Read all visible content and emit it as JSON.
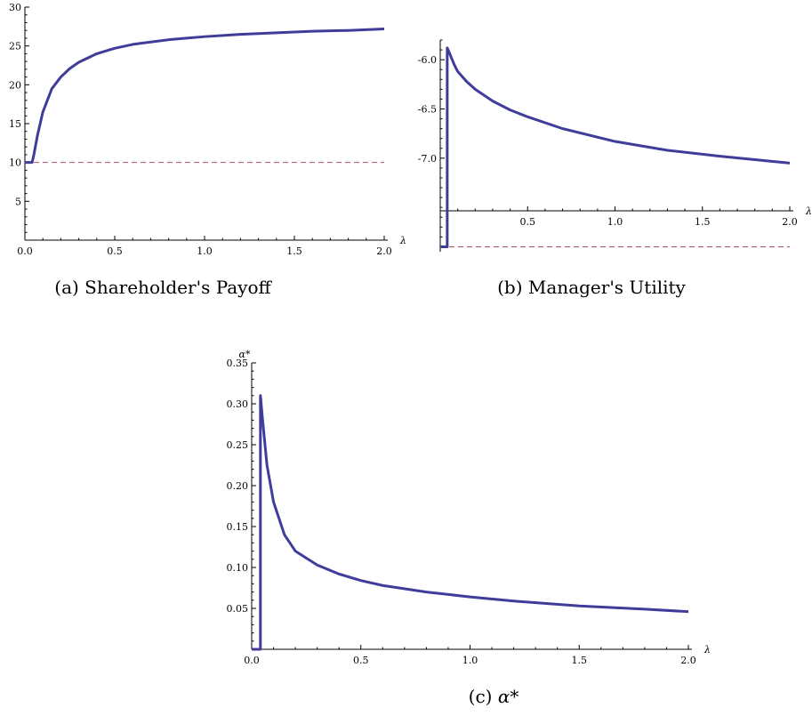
{
  "chart_data": [
    {
      "id": "a",
      "type": "line",
      "caption_tag": "(a)",
      "caption_text": "Shareholder's Payoff",
      "xlabel": "λ",
      "ylabel": "",
      "xlim": [
        0,
        2
      ],
      "ylim": [
        0,
        30
      ],
      "x_ticks": [
        0.0,
        0.5,
        1.0,
        1.5,
        2.0
      ],
      "x_tick_labels": [
        "0.0",
        "0.5",
        "1.0",
        "1.5",
        "2.0"
      ],
      "y_ticks": [
        5,
        10,
        15,
        20,
        25,
        30
      ],
      "y_tick_labels": [
        "5",
        "10",
        "15",
        "20",
        "25",
        "30"
      ],
      "series": [
        {
          "color": "#3f3d99",
          "x": [
            0.0,
            0.04,
            0.05,
            0.07,
            0.1,
            0.15,
            0.2,
            0.25,
            0.3,
            0.4,
            0.5,
            0.6,
            0.7,
            0.8,
            0.9,
            1.0,
            1.2,
            1.4,
            1.6,
            1.8,
            2.0
          ],
          "y": [
            10.0,
            10.0,
            11.0,
            13.5,
            16.5,
            19.5,
            21.0,
            22.1,
            22.9,
            24.0,
            24.7,
            25.2,
            25.5,
            25.8,
            26.0,
            26.2,
            26.5,
            26.7,
            26.9,
            27.0,
            27.2
          ]
        }
      ],
      "reference_lines": [
        {
          "y": 10,
          "style": "dashed",
          "color": "#b05060"
        }
      ]
    },
    {
      "id": "b",
      "type": "line",
      "caption_tag": "(b)",
      "caption_text": "Manager's Utility",
      "xlabel": "λ",
      "ylabel": "",
      "xlim": [
        0,
        2
      ],
      "ylim": [
        -7.95,
        -5.8
      ],
      "x_axis_at_y": -7.6,
      "x_ticks": [
        0.5,
        1.0,
        1.5,
        2.0
      ],
      "x_tick_labels": [
        "0.5",
        "1.0",
        "1.5",
        "2.0"
      ],
      "y_ticks": [
        -6.0,
        -6.5,
        -7.0
      ],
      "y_tick_labels": [
        "-6.0",
        "-6.5",
        "-7.0"
      ],
      "series": [
        {
          "color": "#3f3d99",
          "x": [
            0.0,
            0.04,
            0.04,
            0.05,
            0.08,
            0.1,
            0.15,
            0.2,
            0.3,
            0.4,
            0.5,
            0.7,
            1.0,
            1.3,
            1.6,
            2.0
          ],
          "y": [
            -7.9,
            -7.9,
            -5.88,
            -5.92,
            -6.05,
            -6.12,
            -6.22,
            -6.3,
            -6.42,
            -6.51,
            -6.58,
            -6.7,
            -6.83,
            -6.92,
            -6.98,
            -7.05
          ]
        }
      ],
      "reference_lines": [
        {
          "y": -7.9,
          "style": "dashed",
          "color": "#b05060"
        }
      ]
    },
    {
      "id": "c",
      "type": "line",
      "caption_tag": "(c)",
      "caption_text": "α*",
      "xlabel": "λ",
      "ylabel": "α*",
      "xlim": [
        0,
        2
      ],
      "ylim": [
        0,
        0.35
      ],
      "x_ticks": [
        0.0,
        0.5,
        1.0,
        1.5,
        2.0
      ],
      "x_tick_labels": [
        "0.0",
        "0.5",
        "1.0",
        "1.5",
        "2.0"
      ],
      "y_ticks": [
        0.05,
        0.1,
        0.15,
        0.2,
        0.25,
        0.3,
        0.35
      ],
      "y_tick_labels": [
        "0.05",
        "0.10",
        "0.15",
        "0.20",
        "0.25",
        "0.30",
        "0.35"
      ],
      "series": [
        {
          "color": "#3f3d99",
          "x": [
            0.0,
            0.04,
            0.04,
            0.05,
            0.07,
            0.1,
            0.15,
            0.2,
            0.3,
            0.4,
            0.5,
            0.6,
            0.8,
            1.0,
            1.2,
            1.5,
            1.8,
            2.0
          ],
          "y": [
            0.0,
            0.0,
            0.31,
            0.28,
            0.225,
            0.18,
            0.14,
            0.12,
            0.103,
            0.092,
            0.084,
            0.078,
            0.07,
            0.064,
            0.059,
            0.053,
            0.049,
            0.046
          ]
        }
      ],
      "reference_lines": []
    }
  ]
}
